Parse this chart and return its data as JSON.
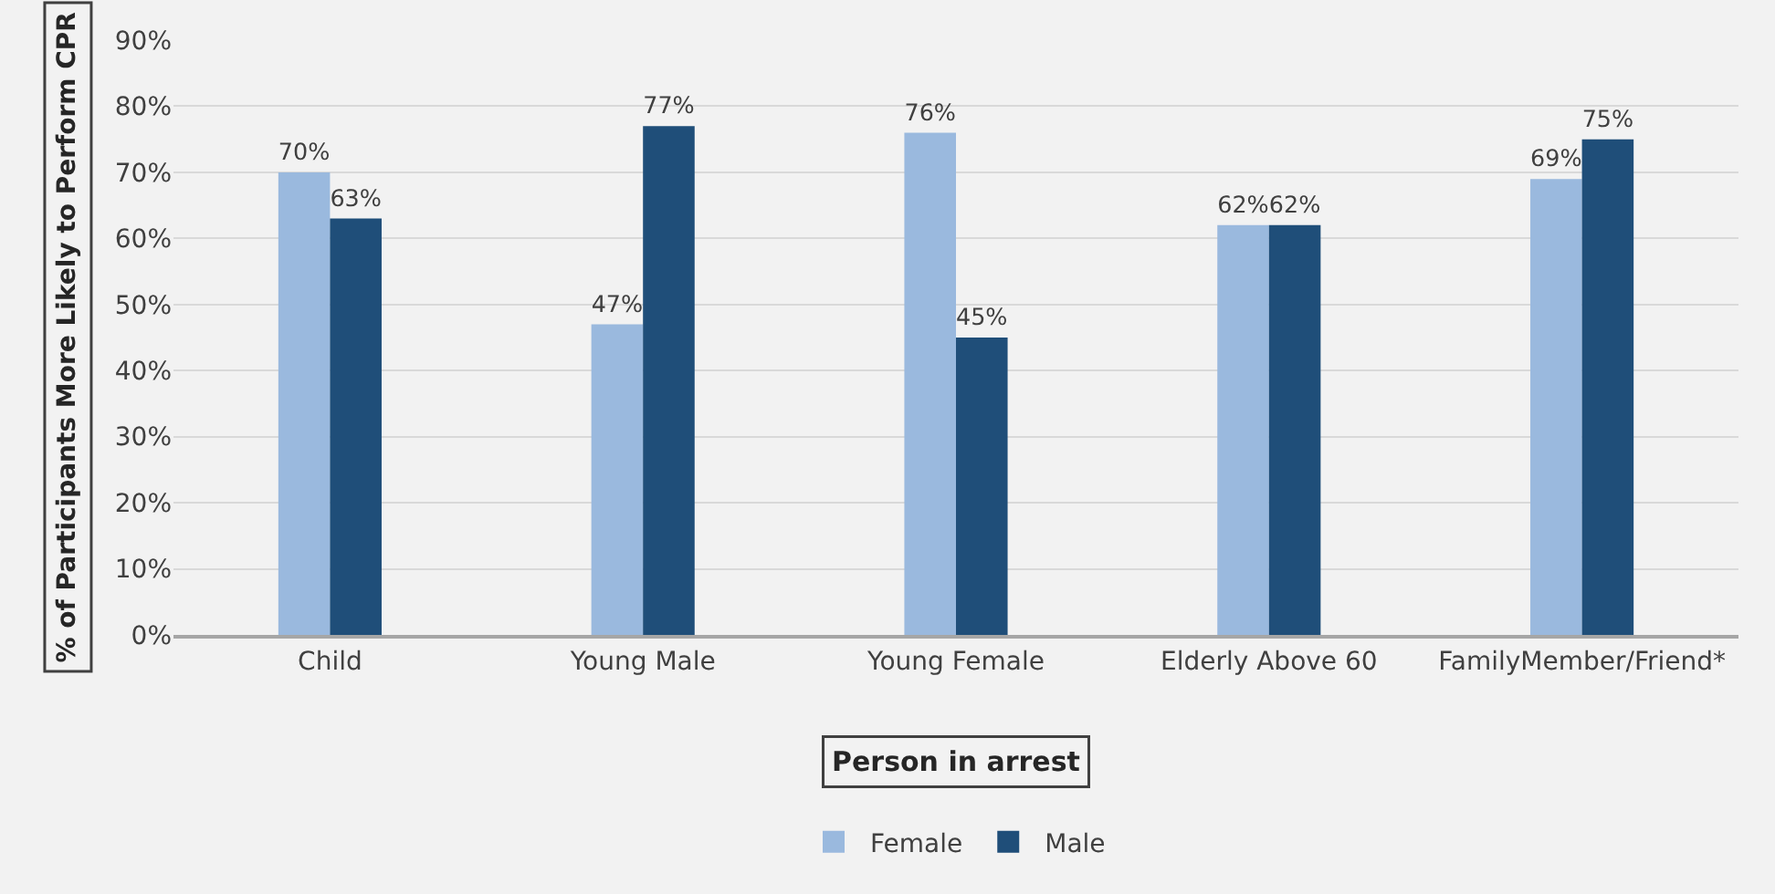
{
  "chart_data": {
    "type": "bar",
    "categories": [
      "Child",
      "Young Male",
      "Young Female",
      "Elderly Above 60",
      "FamilyMember/Friend*"
    ],
    "series": [
      {
        "name": "Female",
        "color": "#9ab9de",
        "values": [
          70,
          47,
          76,
          62,
          69
        ],
        "value_labels": [
          "70%",
          "47%",
          "76%",
          "62%",
          "69%"
        ]
      },
      {
        "name": "Male",
        "color": "#1f4e79",
        "values": [
          63,
          77,
          45,
          62,
          75
        ],
        "value_labels": [
          "63%",
          "77%",
          "45%",
          "62%",
          "75%"
        ]
      }
    ],
    "xlabel": "Person in arrest",
    "ylabel": "% of Participants More Likely to Perform CPR",
    "ylim": [
      0,
      90
    ],
    "yticks": [
      {
        "value": 0,
        "label": "0%"
      },
      {
        "value": 10,
        "label": "10%"
      },
      {
        "value": 20,
        "label": "20%"
      },
      {
        "value": 30,
        "label": "30%"
      },
      {
        "value": 40,
        "label": "40%"
      },
      {
        "value": 50,
        "label": "50%"
      },
      {
        "value": 60,
        "label": "60%"
      },
      {
        "value": 70,
        "label": "70%"
      },
      {
        "value": 80,
        "label": "80%"
      },
      {
        "value": 90,
        "label": "90%"
      }
    ],
    "grid": "y",
    "legend": "bottom"
  }
}
